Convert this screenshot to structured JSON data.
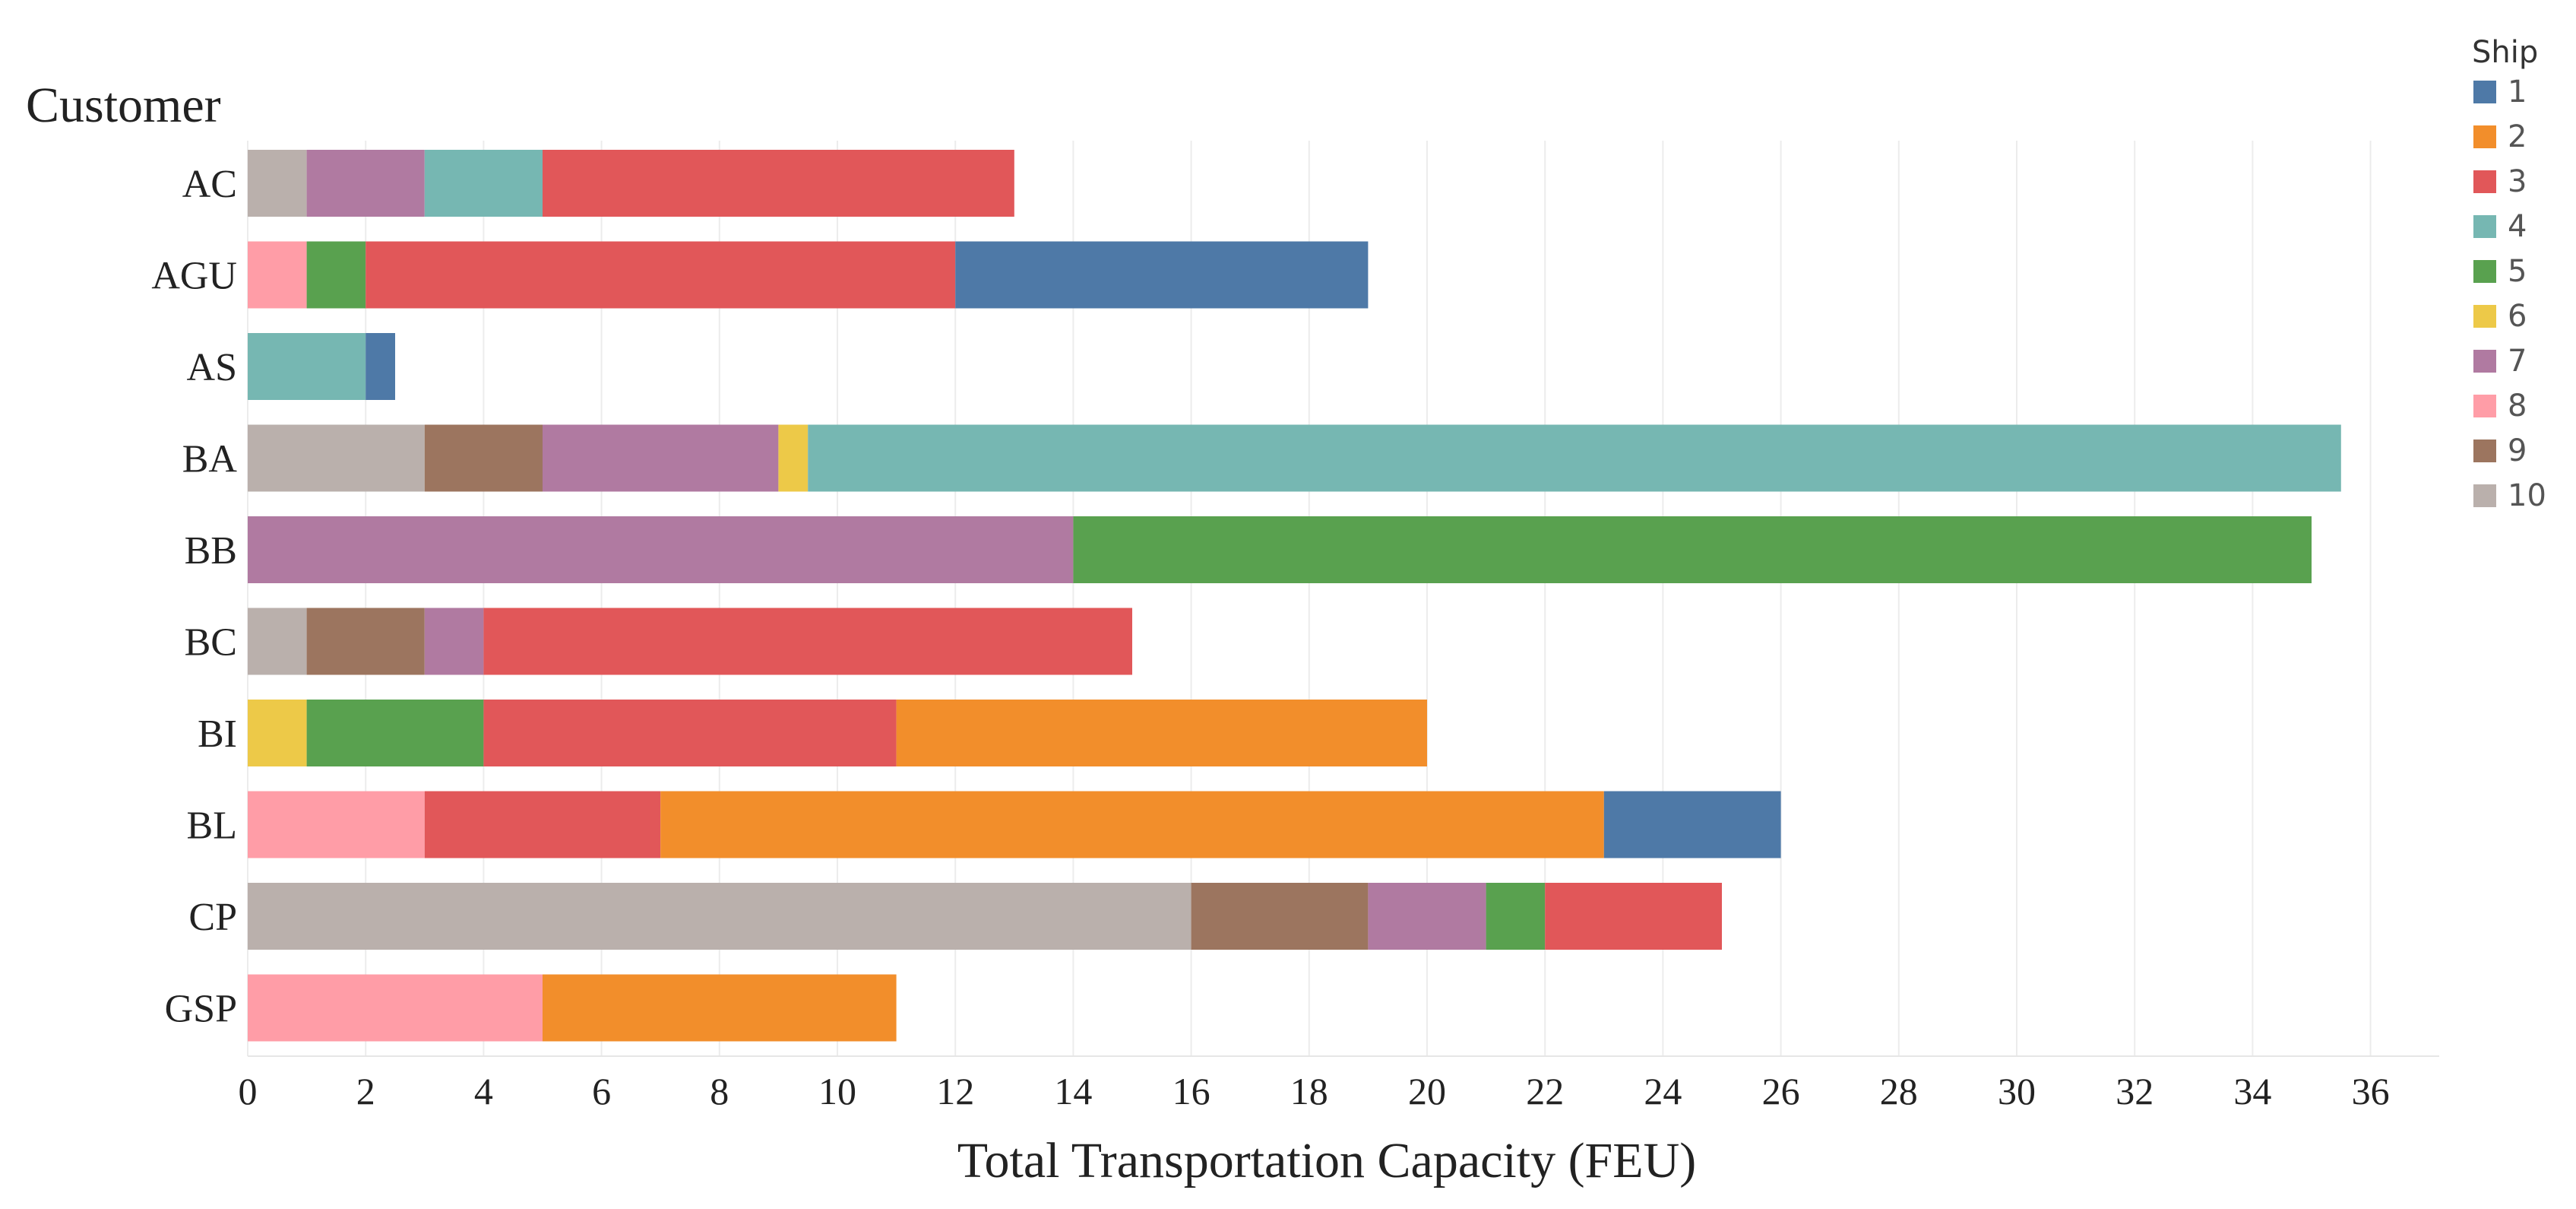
{
  "chart_data": {
    "type": "bar",
    "orientation": "horizontal",
    "stacked": true,
    "ylabel": "Customer",
    "xlabel": "Total Transportation Capacity (FEU)",
    "xlim": [
      0,
      37
    ],
    "xticks": [
      "0",
      "2",
      "4",
      "6",
      "8",
      "10",
      "12",
      "14",
      "16",
      "18",
      "20",
      "22",
      "24",
      "26",
      "28",
      "30",
      "32",
      "34",
      "36"
    ],
    "grid": "vertical",
    "legend_title": "Ship",
    "legend_position": "top-right",
    "ships": [
      {
        "name": "1",
        "color": "#4e79a7"
      },
      {
        "name": "2",
        "color": "#f28e2b"
      },
      {
        "name": "3",
        "color": "#e15759"
      },
      {
        "name": "4",
        "color": "#76b7b2"
      },
      {
        "name": "5",
        "color": "#59a14f"
      },
      {
        "name": "6",
        "color": "#edc948"
      },
      {
        "name": "7",
        "color": "#b07aa1"
      },
      {
        "name": "8",
        "color": "#ff9da7"
      },
      {
        "name": "9",
        "color": "#9c755f"
      },
      {
        "name": "10",
        "color": "#bab0ac"
      }
    ],
    "customers": [
      {
        "name": "AC",
        "segments": [
          {
            "ship": "10",
            "value": 1
          },
          {
            "ship": "7",
            "value": 2
          },
          {
            "ship": "4",
            "value": 2
          },
          {
            "ship": "3",
            "value": 8
          }
        ]
      },
      {
        "name": "AGU",
        "segments": [
          {
            "ship": "8",
            "value": 1
          },
          {
            "ship": "5",
            "value": 1
          },
          {
            "ship": "3",
            "value": 10
          },
          {
            "ship": "1",
            "value": 7
          }
        ]
      },
      {
        "name": "AS",
        "segments": [
          {
            "ship": "4",
            "value": 2
          },
          {
            "ship": "1",
            "value": 0.5
          }
        ]
      },
      {
        "name": "BA",
        "segments": [
          {
            "ship": "10",
            "value": 3
          },
          {
            "ship": "9",
            "value": 2
          },
          {
            "ship": "7",
            "value": 4
          },
          {
            "ship": "6",
            "value": 0.5
          },
          {
            "ship": "4",
            "value": 26
          }
        ]
      },
      {
        "name": "BB",
        "segments": [
          {
            "ship": "7",
            "value": 14
          },
          {
            "ship": "5",
            "value": 21
          }
        ]
      },
      {
        "name": "BC",
        "segments": [
          {
            "ship": "10",
            "value": 1
          },
          {
            "ship": "9",
            "value": 2
          },
          {
            "ship": "7",
            "value": 1
          },
          {
            "ship": "3",
            "value": 11
          }
        ]
      },
      {
        "name": "BI",
        "segments": [
          {
            "ship": "6",
            "value": 1
          },
          {
            "ship": "5",
            "value": 3
          },
          {
            "ship": "3",
            "value": 7
          },
          {
            "ship": "2",
            "value": 9
          }
        ]
      },
      {
        "name": "BL",
        "segments": [
          {
            "ship": "8",
            "value": 3
          },
          {
            "ship": "3",
            "value": 4
          },
          {
            "ship": "2",
            "value": 16
          },
          {
            "ship": "1",
            "value": 3
          }
        ]
      },
      {
        "name": "CP",
        "segments": [
          {
            "ship": "10",
            "value": 16
          },
          {
            "ship": "9",
            "value": 3
          },
          {
            "ship": "7",
            "value": 2
          },
          {
            "ship": "5",
            "value": 1
          },
          {
            "ship": "3",
            "value": 3
          }
        ]
      },
      {
        "name": "GSP",
        "segments": [
          {
            "ship": "8",
            "value": 5
          },
          {
            "ship": "2",
            "value": 6
          }
        ]
      }
    ]
  }
}
